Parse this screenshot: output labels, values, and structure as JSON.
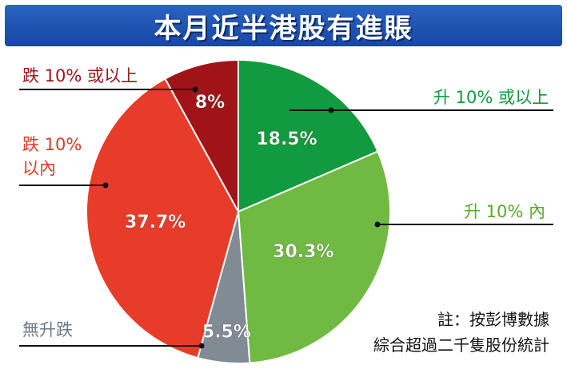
{
  "chart_data": {
    "type": "pie",
    "title": "本月近半港股有進賬",
    "start_angle_deg": 0,
    "direction": "clockwise",
    "slices": [
      {
        "label": "升 10% 或以上",
        "value": 18.5,
        "display": "18.5%",
        "color": "#119a3e",
        "label_color": "#119a3e"
      },
      {
        "label": "升 10% 內",
        "value": 30.3,
        "display": "30.3%",
        "color": "#70b942",
        "label_color": "#5aa82c"
      },
      {
        "label": "無升跌",
        "value": 5.5,
        "display": "5.5%",
        "color": "#818b94",
        "label_color": "#6f7a86"
      },
      {
        "label": "跌 10%\n以內",
        "value": 37.7,
        "display": "37.7%",
        "color": "#e83c2a",
        "label_color": "#e03a26"
      },
      {
        "label": "跌 10% 或以上",
        "value": 8,
        "display": "8%",
        "color": "#a01418",
        "label_color": "#a01418"
      }
    ]
  },
  "notes": {
    "line1": "註：按彭博數據",
    "line2": "綜合超過二千隻股份統計"
  }
}
